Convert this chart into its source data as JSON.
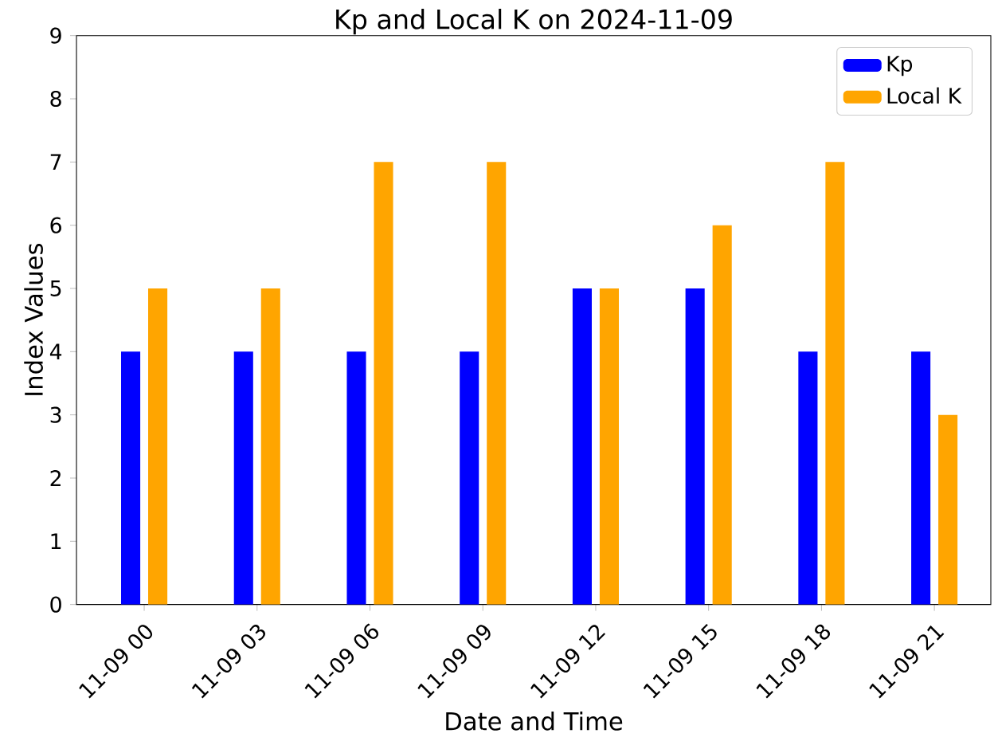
{
  "chart_data": {
    "type": "bar",
    "title": "Kp and Local K on 2024-11-09",
    "xlabel": "Date and Time",
    "ylabel": "Index Values",
    "categories": [
      "11-09 00",
      "11-09 03",
      "11-09 06",
      "11-09 09",
      "11-09 12",
      "11-09 15",
      "11-09 18",
      "11-09 21"
    ],
    "series": [
      {
        "name": "Kp",
        "color": "#0000ff",
        "values": [
          4,
          4,
          4,
          4,
          5,
          5,
          4,
          4
        ]
      },
      {
        "name": "Local K",
        "color": "#ffa500",
        "values": [
          5,
          5,
          7,
          7,
          5,
          6,
          7,
          3
        ]
      }
    ],
    "ylim": [
      0,
      9
    ],
    "yticks": [
      0,
      1,
      2,
      3,
      4,
      5,
      6,
      7,
      8,
      9
    ],
    "grid": false,
    "legend": "top right"
  }
}
